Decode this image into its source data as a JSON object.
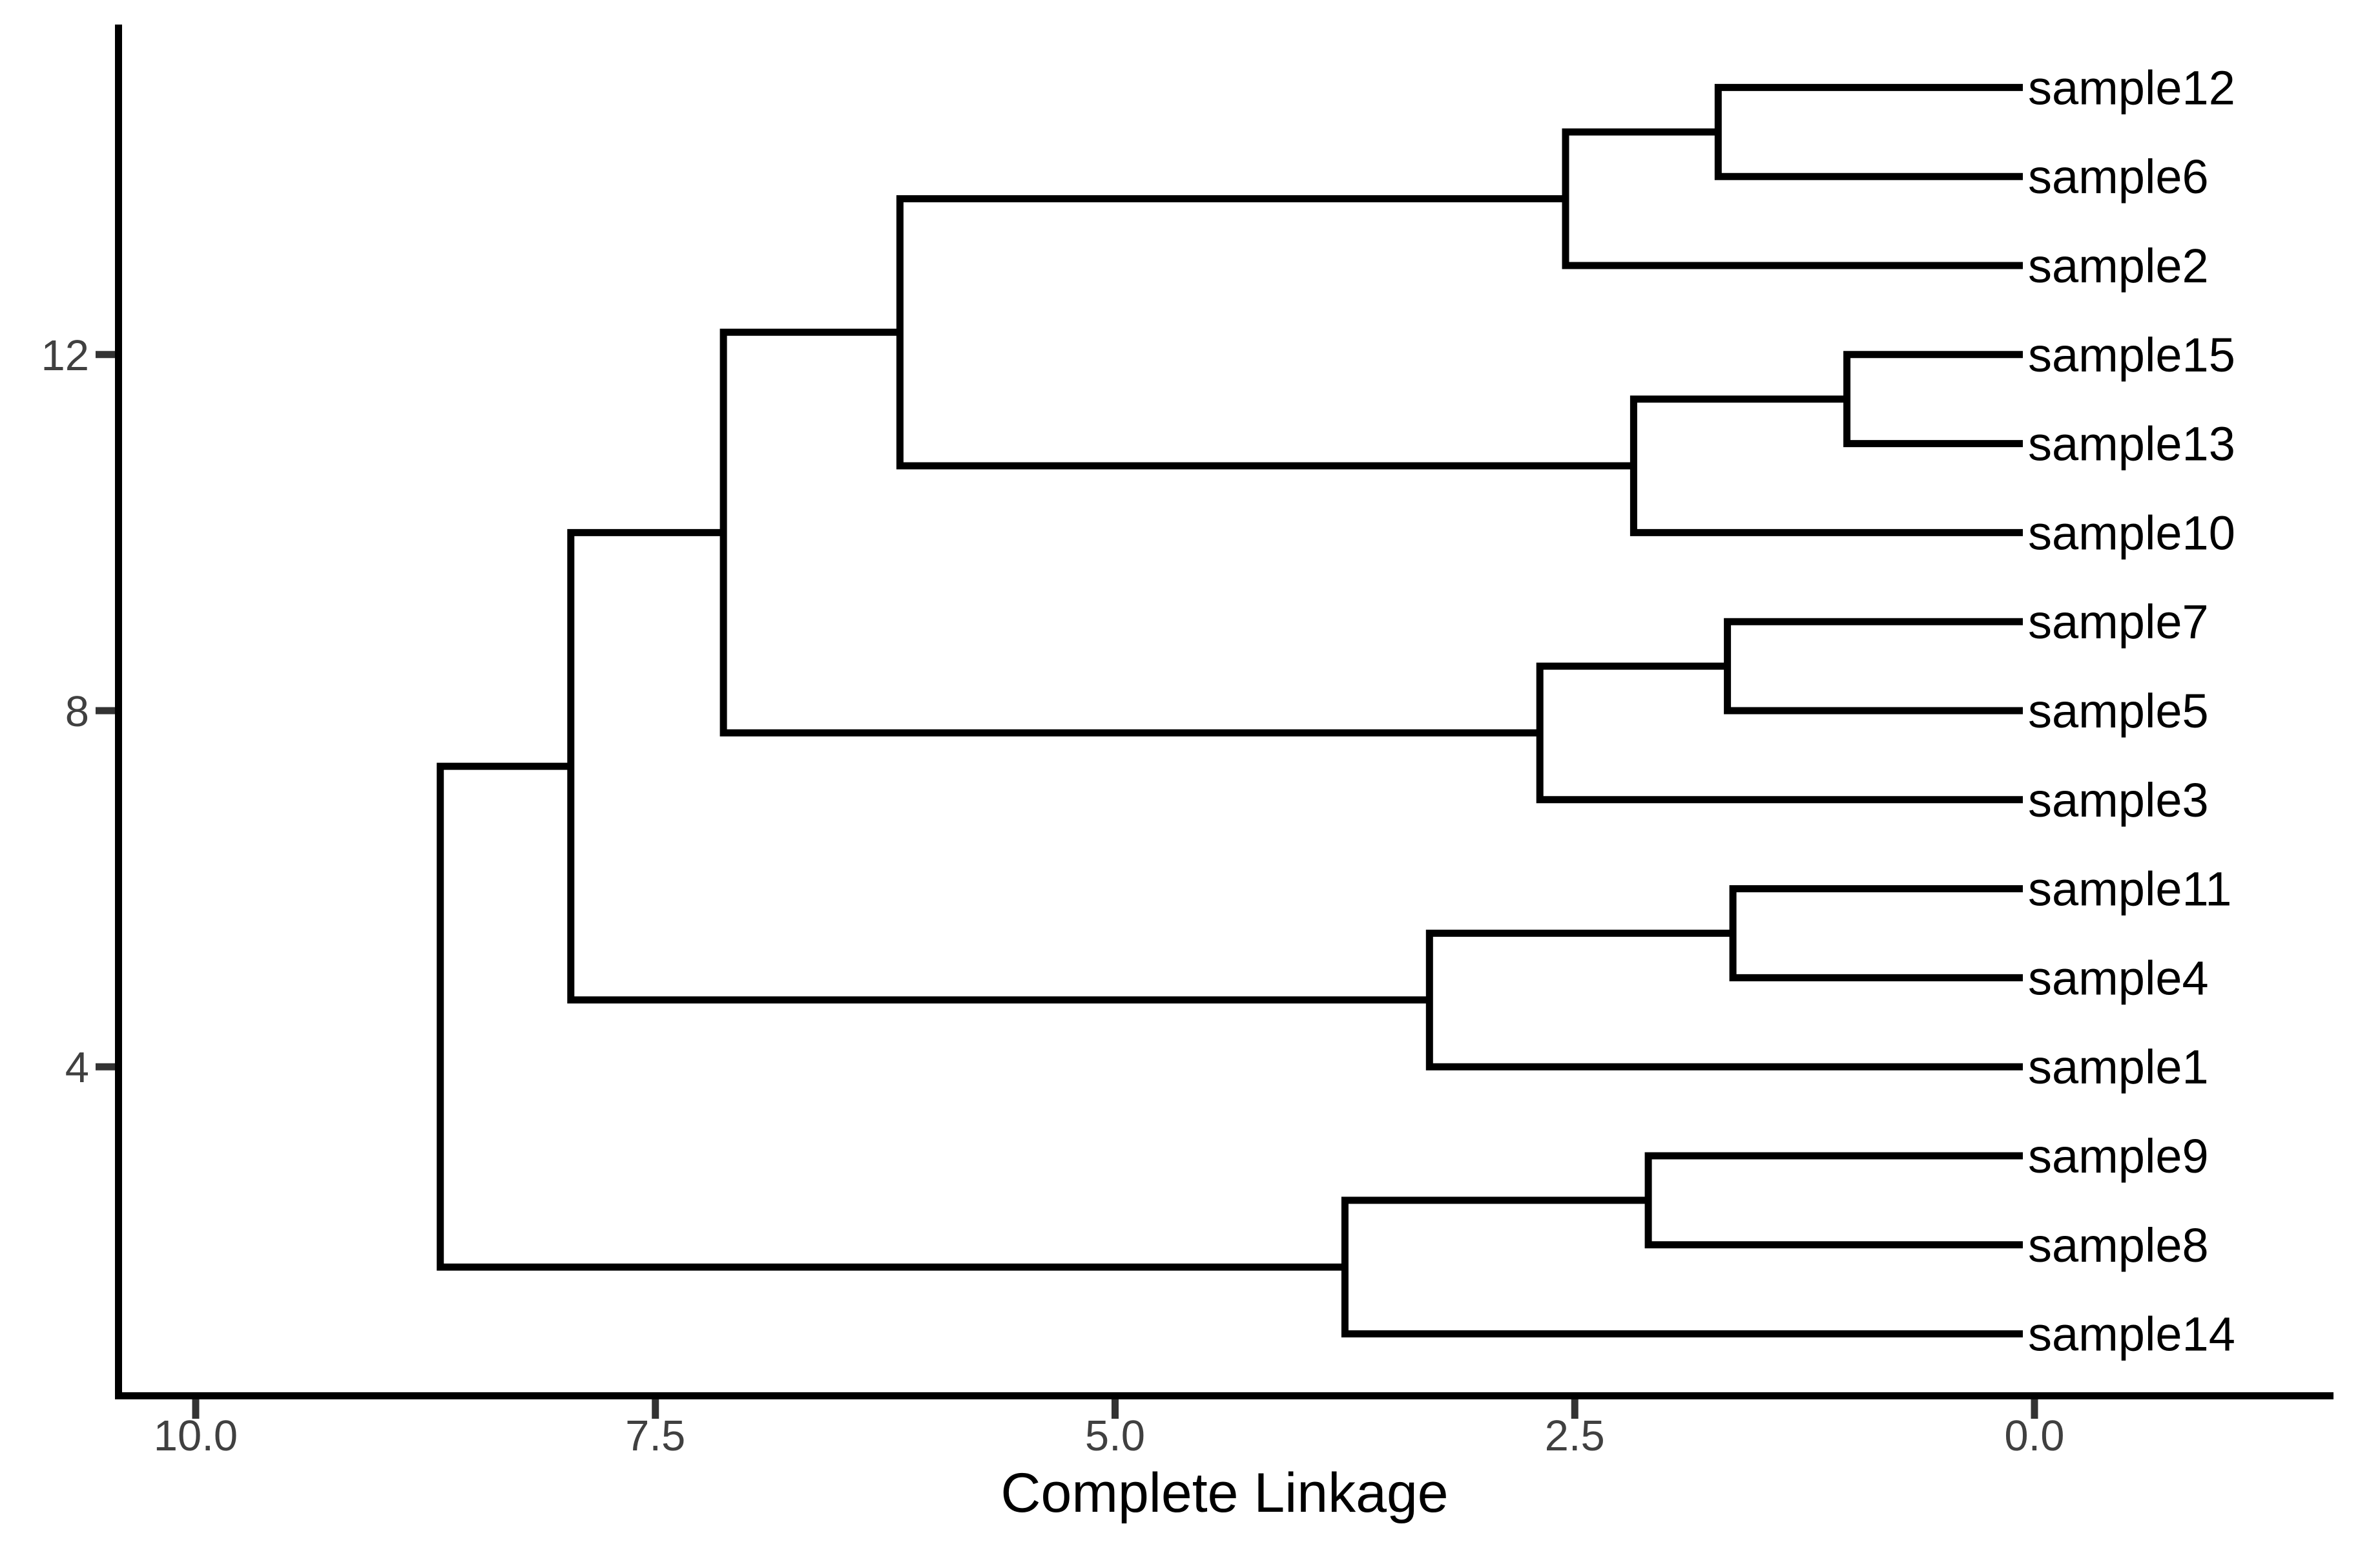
{
  "chart_data": {
    "type": "dendrogram",
    "title": "",
    "xlabel": "Complete Linkage",
    "orientation": "horizontal; leaves at right (height 0), root at left; x axis reversed",
    "x_axis": {
      "tick_labels": [
        "10.0",
        "7.5",
        "5.0",
        "2.5",
        "0.0"
      ],
      "tick_values": [
        10,
        7.5,
        5,
        2.5,
        0
      ]
    },
    "y_axis": {
      "tick_labels": [
        "12",
        "8",
        "4"
      ],
      "tick_values": [
        12,
        8,
        4
      ],
      "meaning": "leaf position index counted from bottom (1-15)"
    },
    "leaves_top_to_bottom": [
      "sample12",
      "sample6",
      "sample2",
      "sample15",
      "sample13",
      "sample10",
      "sample7",
      "sample5",
      "sample3",
      "sample11",
      "sample4",
      "sample1",
      "sample9",
      "sample8",
      "sample14"
    ],
    "merges": [
      {
        "members": [
          "sample15",
          "sample13"
        ],
        "height": 1.02
      },
      {
        "members": [
          "sample11",
          "sample4"
        ],
        "height": 1.64
      },
      {
        "members": [
          "sample7",
          "sample5"
        ],
        "height": 1.67
      },
      {
        "members": [
          "sample12",
          "sample6"
        ],
        "height": 1.72
      },
      {
        "members": [
          "sample9",
          "sample8"
        ],
        "height": 2.1
      },
      {
        "members": [
          "(sample15,sample13)",
          "sample10"
        ],
        "height": 2.18
      },
      {
        "members": [
          "(sample12,sample6)",
          "sample2"
        ],
        "height": 2.55
      },
      {
        "members": [
          "(sample7,sample5)",
          "sample3"
        ],
        "height": 2.69
      },
      {
        "members": [
          "(sample11,sample4)",
          "sample1"
        ],
        "height": 3.29
      },
      {
        "members": [
          "(sample9,sample8)",
          "sample14"
        ],
        "height": 3.75
      },
      {
        "members": [
          "cluster(12,6,2)",
          "cluster(15,13,10)"
        ],
        "height": 6.17
      },
      {
        "members": [
          "cluster(12,6,2,15,13,10)",
          "cluster(7,5,3)"
        ],
        "height": 7.13
      },
      {
        "members": [
          "cluster(12,6,2,15,13,10,7,5,3)",
          "cluster(11,4,1)"
        ],
        "height": 7.96
      },
      {
        "members": [
          "cluster(12,6,2,15,13,10,7,5,3,11,4,1)",
          "cluster(9,8,14)"
        ],
        "height": 8.67
      }
    ],
    "tree": {
      "h": 8.67,
      "children": [
        {
          "h": 7.96,
          "children": [
            {
              "h": 7.13,
              "children": [
                {
                  "h": 6.17,
                  "children": [
                    {
                      "h": 2.55,
                      "children": [
                        {
                          "h": 1.72,
                          "children": [
                            {
                              "leaf": "sample12"
                            },
                            {
                              "leaf": "sample6"
                            }
                          ]
                        },
                        {
                          "leaf": "sample2"
                        }
                      ]
                    },
                    {
                      "h": 2.18,
                      "children": [
                        {
                          "h": 1.02,
                          "children": [
                            {
                              "leaf": "sample15"
                            },
                            {
                              "leaf": "sample13"
                            }
                          ]
                        },
                        {
                          "leaf": "sample10"
                        }
                      ]
                    }
                  ]
                },
                {
                  "h": 2.69,
                  "children": [
                    {
                      "h": 1.67,
                      "children": [
                        {
                          "leaf": "sample7"
                        },
                        {
                          "leaf": "sample5"
                        }
                      ]
                    },
                    {
                      "leaf": "sample3"
                    }
                  ]
                }
              ]
            },
            {
              "h": 3.29,
              "children": [
                {
                  "h": 1.64,
                  "children": [
                    {
                      "leaf": "sample11"
                    },
                    {
                      "leaf": "sample4"
                    }
                  ]
                },
                {
                  "leaf": "sample1"
                }
              ]
            }
          ]
        },
        {
          "h": 3.75,
          "children": [
            {
              "h": 2.1,
              "children": [
                {
                  "leaf": "sample9"
                },
                {
                  "leaf": "sample8"
                }
              ]
            },
            {
              "leaf": "sample14"
            }
          ]
        }
      ]
    }
  },
  "style": {
    "background": "#ffffff",
    "link_color": "#000000",
    "axis_line_color": "#000000",
    "tick_mark_color": "#333333",
    "tick_label_color": "#404040",
    "leaf_label_color": "#000000",
    "axis_title_color": "#000000"
  }
}
